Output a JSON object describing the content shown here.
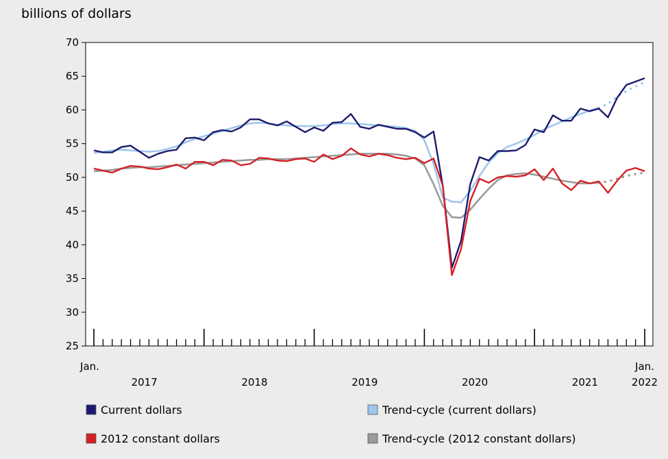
{
  "chart_data": {
    "type": "line",
    "title": "",
    "ylabel": "billions of dollars",
    "xlabel": "",
    "ylim": [
      25,
      70
    ],
    "yticks": [
      25,
      30,
      35,
      40,
      45,
      50,
      55,
      60,
      65,
      70
    ],
    "grid": false,
    "legend_placement": "bottom",
    "x_axis": {
      "months": 61,
      "start_label": "Jan.",
      "end_label": "Jan.",
      "year_labels": [
        {
          "label": "2017",
          "center_month": 5.5
        },
        {
          "label": "2018",
          "center_month": 17.5
        },
        {
          "label": "2019",
          "center_month": 29.5
        },
        {
          "label": "2020",
          "center_month": 41.5
        },
        {
          "label": "2021",
          "center_month": 53.5
        },
        {
          "label": "2022",
          "center_month": 60
        }
      ],
      "major_ticks": [
        0,
        12,
        24,
        36,
        48,
        60
      ]
    },
    "series": [
      {
        "name": "Current dollars",
        "color": "#1b1a6e",
        "style": "solid",
        "values": [
          54.0,
          53.7,
          53.7,
          54.5,
          54.7,
          53.8,
          52.9,
          53.5,
          53.9,
          54.1,
          55.8,
          55.9,
          55.5,
          56.7,
          57.0,
          56.8,
          57.4,
          58.6,
          58.6,
          58.0,
          57.7,
          58.3,
          57.5,
          56.7,
          57.4,
          56.9,
          58.1,
          58.2,
          59.4,
          57.5,
          57.2,
          57.8,
          57.5,
          57.2,
          57.2,
          56.7,
          55.9,
          56.8,
          48.8,
          36.6,
          40.6,
          49.0,
          53.0,
          52.5,
          53.9,
          53.9,
          54.0,
          54.8,
          57.1,
          56.7,
          59.2,
          58.4,
          58.4,
          60.2,
          59.8,
          60.2,
          58.9,
          61.8,
          63.7,
          64.2,
          64.7
        ]
      },
      {
        "name": "Trend-cycle (current dollars)",
        "color": "#9fc6ec",
        "style": "solid-then-dotted",
        "solid_until": 55,
        "values": [
          53.6,
          53.8,
          54.0,
          54.1,
          54.0,
          53.9,
          53.8,
          53.9,
          54.2,
          54.6,
          55.2,
          55.7,
          56.1,
          56.5,
          56.9,
          57.3,
          57.7,
          58.0,
          58.1,
          58.0,
          57.8,
          57.7,
          57.6,
          57.6,
          57.6,
          57.7,
          57.9,
          58.0,
          58.0,
          57.9,
          57.8,
          57.7,
          57.6,
          57.5,
          57.3,
          56.9,
          55.5,
          52.0,
          47.0,
          46.4,
          46.3,
          48.0,
          50.2,
          52.2,
          53.6,
          54.5,
          55.0,
          55.6,
          56.3,
          57.1,
          57.7,
          58.3,
          58.9,
          59.4,
          59.9,
          60.3,
          60.9,
          62.0,
          62.8,
          63.5,
          64.1
        ]
      },
      {
        "name": "2012 constant dollars",
        "color": "#d42026",
        "style": "solid",
        "values": [
          51.3,
          51.0,
          50.7,
          51.3,
          51.7,
          51.6,
          51.3,
          51.2,
          51.5,
          51.9,
          51.3,
          52.3,
          52.3,
          51.8,
          52.6,
          52.5,
          51.8,
          52.0,
          52.9,
          52.8,
          52.5,
          52.4,
          52.7,
          52.8,
          52.3,
          53.4,
          52.7,
          53.2,
          54.3,
          53.4,
          53.1,
          53.5,
          53.3,
          52.9,
          52.7,
          52.9,
          52.1,
          52.8,
          48.8,
          35.5,
          39.4,
          46.5,
          49.8,
          49.2,
          50.0,
          50.2,
          50.1,
          50.3,
          51.2,
          49.6,
          51.3,
          49.1,
          48.1,
          49.5,
          49.1,
          49.4,
          47.7,
          49.5,
          51.0,
          51.4,
          50.9
        ]
      },
      {
        "name": "Trend-cycle (2012 constant dollars)",
        "color": "#9a9a9a",
        "style": "solid-then-dotted",
        "solid_until": 55,
        "values": [
          50.9,
          51.0,
          51.1,
          51.3,
          51.4,
          51.5,
          51.5,
          51.6,
          51.7,
          51.8,
          51.9,
          52.0,
          52.1,
          52.2,
          52.3,
          52.4,
          52.5,
          52.6,
          52.6,
          52.7,
          52.7,
          52.7,
          52.8,
          52.9,
          53.0,
          53.1,
          53.2,
          53.3,
          53.4,
          53.5,
          53.5,
          53.5,
          53.5,
          53.4,
          53.2,
          52.8,
          51.8,
          49.0,
          45.8,
          44.1,
          44.0,
          45.2,
          46.8,
          48.3,
          49.6,
          50.3,
          50.5,
          50.6,
          50.4,
          50.1,
          49.8,
          49.5,
          49.3,
          49.1,
          49.1,
          49.2,
          49.4,
          49.8,
          50.2,
          50.5,
          50.7
        ]
      }
    ],
    "legend": [
      {
        "label": "Current dollars",
        "color": "#1b1a6e"
      },
      {
        "label": "Trend-cycle (current dollars)",
        "color": "#9fc6ec"
      },
      {
        "label": "2012 constant dollars",
        "color": "#d42026"
      },
      {
        "label": "Trend-cycle (2012 constant dollars)",
        "color": "#9a9a9a"
      }
    ]
  }
}
